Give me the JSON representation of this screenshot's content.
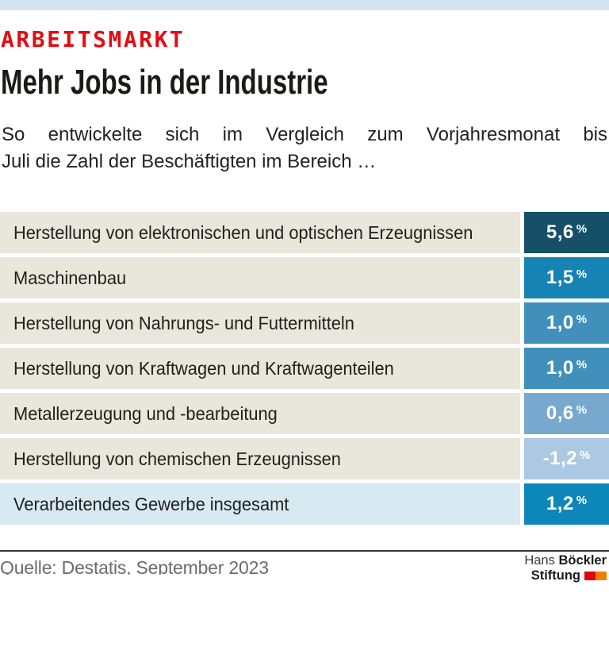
{
  "page": {
    "top_bar_color": "#d2e5ef",
    "background": "#ffffff"
  },
  "header": {
    "kicker": "ARBEITSMARKT",
    "kicker_color": "#e20d13",
    "title": "Mehr Jobs in der Industrie",
    "subtitle_line1": "So entwickelte sich im Vergleich zum Vorjahresmonat bis",
    "subtitle_line2": "Juli die Zahl der Beschäftigten im Bereich …"
  },
  "table": {
    "unit": "%",
    "rows": [
      {
        "label": "Herstellung von elektronischen und optischen Erzeugnissen",
        "value_label": "5,6",
        "box_color": "#155068",
        "row_bg": "#e9e7db"
      },
      {
        "label": "Maschinenbau",
        "value_label": "1,5",
        "box_color": "#1583b4",
        "row_bg": "#e9e7db"
      },
      {
        "label": "Herstellung von Nahrungs- und Futtermitteln",
        "value_label": "1,0",
        "box_color": "#4190bc",
        "row_bg": "#e9e7db"
      },
      {
        "label": "Herstellung von Kraftwagen und Kraftwagenteilen",
        "value_label": "1,0",
        "box_color": "#4190bc",
        "row_bg": "#e9e7db"
      },
      {
        "label": "Metallerzeugung und -bearbeitung",
        "value_label": "0,6",
        "box_color": "#77a9ce",
        "row_bg": "#e9e7db"
      },
      {
        "label": "Herstellung von chemischen Erzeugnissen",
        "value_label": "-1,2",
        "box_color": "#abc9e2",
        "row_bg": "#e9e7db"
      },
      {
        "label": "Verarbeitendes Gewerbe insgesamt",
        "value_label": "1,2",
        "box_color": "#0d87b9",
        "row_bg": "#d7e9f1"
      }
    ]
  },
  "chart_data": {
    "type": "table",
    "title": "Mehr Jobs in der Industrie",
    "subtitle": "So entwickelte sich im Vergleich zum Vorjahresmonat bis Juli die Zahl der Beschäftigten im Bereich …",
    "categories": [
      "Herstellung von elektronischen und optischen Erzeugnissen",
      "Maschinenbau",
      "Herstellung von Nahrungs- und Futtermitteln",
      "Herstellung von Kraftwagen und Kraftwagenteilen",
      "Metallerzeugung und -bearbeitung",
      "Herstellung von chemischen Erzeugnissen",
      "Verarbeitendes Gewerbe insgesamt"
    ],
    "values": [
      5.6,
      1.5,
      1.0,
      1.0,
      0.6,
      -1.2,
      1.2
    ],
    "value_labels": [
      "5,6 %",
      "1,5 %",
      "1,0 %",
      "1,0 %",
      "0,6 %",
      "-1,2 %",
      "1,2 %"
    ],
    "unit": "%",
    "value_box_colors": [
      "#155068",
      "#1583b4",
      "#4190bc",
      "#4190bc",
      "#77a9ce",
      "#abc9e2",
      "#0d87b9"
    ],
    "legend": "none",
    "grid": false
  },
  "footer": {
    "source": "Quelle: Destatis, September 2023",
    "logo": {
      "word1": "Hans",
      "word2": "Böckler",
      "word3": "Stiftung",
      "square_red": "#e3000f",
      "square_orange": "#ee7f00"
    }
  }
}
